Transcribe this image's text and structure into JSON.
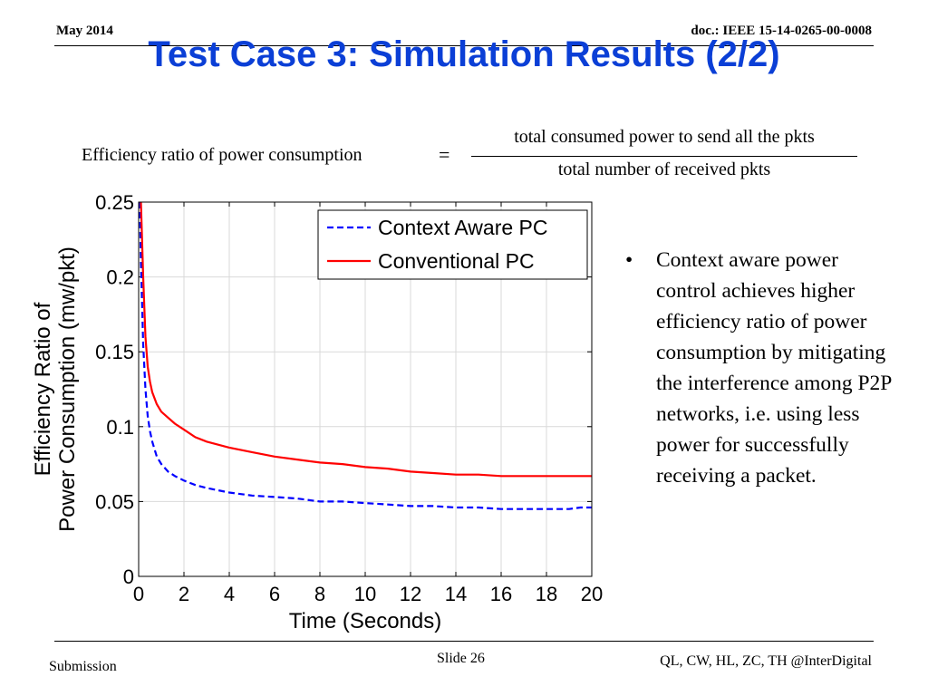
{
  "header": {
    "date": "May 2014",
    "doc": "doc.: IEEE 15-14-0265-00-0008"
  },
  "title": "Test Case 3: Simulation Results (2/2)",
  "formula": {
    "lhs": "Efficiency ratio of power consumption",
    "eq": "=",
    "numerator": "total consumed power to send all the pkts",
    "denominator": "total number of received pkts"
  },
  "chart_data": {
    "type": "line",
    "xlabel": "Time (Seconds)",
    "ylabel": [
      "Efficiency Ratio of",
      "Power Consumption (mw/pkt)"
    ],
    "xlim": [
      0,
      20
    ],
    "ylim": [
      0,
      0.25
    ],
    "xticks": [
      "0",
      "2",
      "4",
      "6",
      "8",
      "10",
      "12",
      "14",
      "16",
      "18",
      "20"
    ],
    "yticks": [
      "0",
      "0.05",
      "0.1",
      "0.15",
      "0.2",
      "0.25"
    ],
    "grid": true,
    "legend_position": "top-right",
    "series": [
      {
        "name": "Context Aware PC",
        "style": "dashed",
        "color": "#0000ff",
        "x": [
          0.05,
          0.1,
          0.2,
          0.3,
          0.4,
          0.5,
          0.6,
          0.8,
          1.0,
          1.3,
          1.6,
          2.0,
          2.5,
          3.0,
          4.0,
          5.0,
          6.0,
          7.0,
          8.0,
          9.0,
          10.0,
          11.0,
          12.0,
          13.0,
          14.0,
          15.0,
          16.0,
          17.0,
          18.0,
          19.0,
          19.5,
          20.0
        ],
        "y": [
          0.25,
          0.21,
          0.155,
          0.125,
          0.107,
          0.097,
          0.09,
          0.08,
          0.075,
          0.07,
          0.067,
          0.064,
          0.061,
          0.059,
          0.056,
          0.054,
          0.053,
          0.052,
          0.05,
          0.05,
          0.049,
          0.048,
          0.047,
          0.047,
          0.046,
          0.046,
          0.045,
          0.045,
          0.045,
          0.045,
          0.046,
          0.046
        ]
      },
      {
        "name": "Conventional PC",
        "style": "solid",
        "color": "#ff0000",
        "x": [
          0.1,
          0.2,
          0.3,
          0.4,
          0.5,
          0.6,
          0.8,
          1.0,
          1.3,
          1.6,
          2.0,
          2.5,
          3.0,
          4.0,
          5.0,
          6.0,
          7.0,
          8.0,
          9.0,
          10.0,
          11.0,
          12.0,
          13.0,
          14.0,
          15.0,
          16.0,
          17.0,
          18.0,
          19.0,
          20.0
        ],
        "y": [
          0.25,
          0.2,
          0.16,
          0.14,
          0.13,
          0.123,
          0.115,
          0.11,
          0.106,
          0.102,
          0.098,
          0.093,
          0.09,
          0.086,
          0.083,
          0.08,
          0.078,
          0.076,
          0.075,
          0.073,
          0.072,
          0.07,
          0.069,
          0.068,
          0.068,
          0.067,
          0.067,
          0.067,
          0.067,
          0.067
        ]
      }
    ]
  },
  "bullet": "Context aware power control achieves higher efficiency ratio of power consumption by mitigating the interference among P2P networks, i.e. using less power for successfully receiving a packet.",
  "footer": {
    "submission": "Submission",
    "slide": "Slide 26",
    "authors": "QL, CW, HL, ZC, TH @InterDigital"
  }
}
